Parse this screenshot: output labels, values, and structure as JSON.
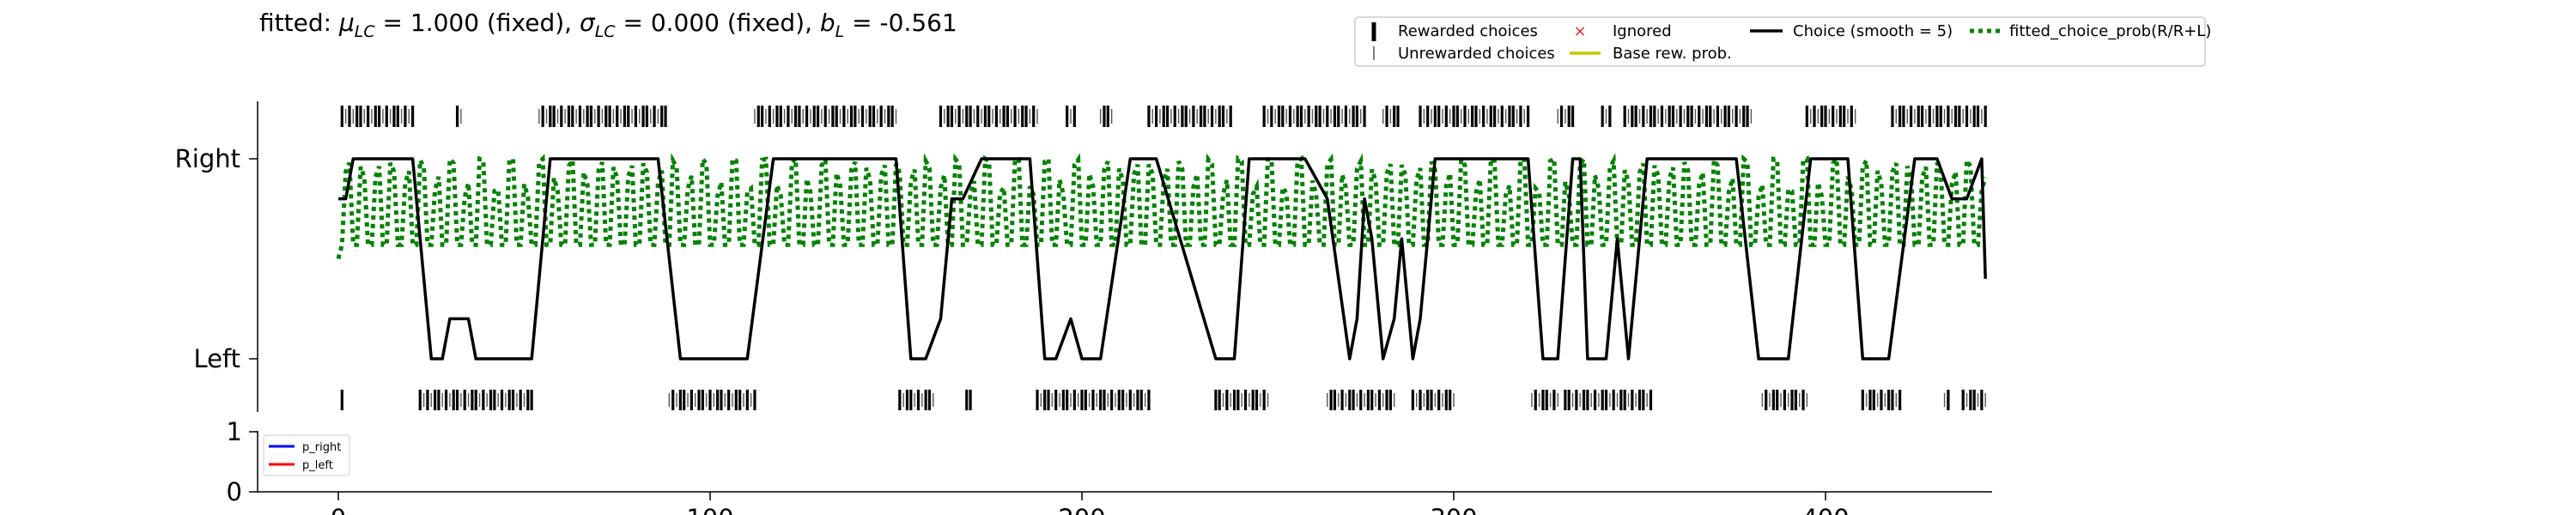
{
  "title": {
    "prefix": "fitted: ",
    "mu_symbol": "μ",
    "mu_sub": "LC",
    "mu_value": " = 1.000 (fixed), ",
    "sigma_symbol": "σ",
    "sigma_sub": "LC",
    "sigma_value": " = 0.000 (fixed), ",
    "b_symbol": "b",
    "b_sub": "L",
    "b_value": " = -0.561"
  },
  "legend": {
    "rewarded": "Rewarded choices",
    "unrewarded": "Unrewarded choices",
    "ignored": "Ignored",
    "base": "Base rew. prob.",
    "choice": "Choice (smooth = 5)",
    "fitted": "fitted_choice_prob(R/R+L)",
    "ignored_marker": "×"
  },
  "colors": {
    "choice_line": "#000000",
    "fitted_line": "#008000",
    "base_line": "#c8c800",
    "ignored": "#d62728",
    "p_right": "#0000ff",
    "p_left": "#ff0000",
    "rewarded_tick": "#000000",
    "unrewarded_tick": "#555555"
  },
  "chart_data": [
    {
      "type": "line",
      "title": "",
      "xlabel": "",
      "ylabel": "",
      "xlim": [
        -22,
        444
      ],
      "ylim": [
        -0.3,
        1.3
      ],
      "y_ticks": [
        {
          "value": 0,
          "label": "Left"
        },
        {
          "value": 1,
          "label": "Right"
        }
      ],
      "grid": false,
      "legend_position": "top-right (outside)",
      "choice_smooth": {
        "name": "Choice (smooth = 5)",
        "x": [
          0,
          2,
          4,
          20,
          25,
          28,
          30,
          35,
          37,
          52,
          57,
          86,
          92,
          110,
          117,
          150,
          154,
          158,
          162,
          165,
          168,
          173,
          186,
          190,
          193,
          197,
          200,
          205,
          213,
          220,
          236,
          241,
          245,
          251,
          260,
          266,
          272,
          274,
          276,
          278,
          281,
          284,
          286,
          289,
          291,
          295,
          297,
          320,
          324,
          328,
          332,
          334,
          336,
          341,
          344,
          347,
          352,
          357,
          376,
          382,
          390,
          396,
          402,
          404,
          406,
          410,
          417,
          424,
          430,
          434,
          438,
          442,
          443
        ],
        "y": [
          0.8,
          0.8,
          1.0,
          1.0,
          0.0,
          0.0,
          0.2,
          0.2,
          0.0,
          0.0,
          1.0,
          1.0,
          0.0,
          0.0,
          1.0,
          1.0,
          0.0,
          0.0,
          0.2,
          0.8,
          0.8,
          1.0,
          1.0,
          0.0,
          0.0,
          0.2,
          0.0,
          0.0,
          1.0,
          1.0,
          0.0,
          0.0,
          1.0,
          1.0,
          1.0,
          0.8,
          0.0,
          0.2,
          0.8,
          0.6,
          0.0,
          0.2,
          0.6,
          0.0,
          0.2,
          1.0,
          1.0,
          1.0,
          0.0,
          0.0,
          1.0,
          1.0,
          0.0,
          0.0,
          0.6,
          0.0,
          1.0,
          1.0,
          1.0,
          0.0,
          0.0,
          1.0,
          1.0,
          1.0,
          1.0,
          0.0,
          0.0,
          1.0,
          1.0,
          0.8,
          0.8,
          1.0,
          0.4
        ]
      },
      "fitted_choice_prob": {
        "name": "fitted_choice_prob(R/R+L)",
        "low": 0.57,
        "high": 1.0,
        "x_range": [
          0,
          443
        ]
      },
      "right_bands": [
        [
          1,
          20
        ],
        [
          32,
          33
        ],
        [
          54,
          88
        ],
        [
          112,
          150
        ],
        [
          162,
          188
        ],
        [
          196,
          198
        ],
        [
          205,
          208
        ],
        [
          218,
          240
        ],
        [
          249,
          276
        ],
        [
          281,
          285
        ],
        [
          291,
          320
        ],
        [
          328,
          332
        ],
        [
          340,
          342
        ],
        [
          346,
          380
        ],
        [
          395,
          408
        ],
        [
          418,
          443
        ]
      ],
      "left_bands": [
        [
          1,
          1
        ],
        [
          22,
          52
        ],
        [
          89,
          112
        ],
        [
          151,
          160
        ],
        [
          169,
          170
        ],
        [
          188,
          218
        ],
        [
          236,
          250
        ],
        [
          266,
          284
        ],
        [
          289,
          300
        ],
        [
          321,
          328
        ],
        [
          330,
          353
        ],
        [
          383,
          395
        ],
        [
          410,
          420
        ],
        [
          432,
          433
        ],
        [
          437,
          443
        ]
      ]
    },
    {
      "type": "line",
      "title": "",
      "xlabel": "",
      "ylabel": "",
      "xlim": [
        -22,
        444
      ],
      "ylim": [
        0,
        1
      ],
      "y_ticks": [
        0,
        1
      ],
      "x_ticks": [
        0,
        100,
        200,
        300,
        400
      ],
      "series": [
        {
          "name": "p_right",
          "x": [],
          "y": []
        },
        {
          "name": "p_left",
          "x": [],
          "y": []
        }
      ]
    }
  ]
}
